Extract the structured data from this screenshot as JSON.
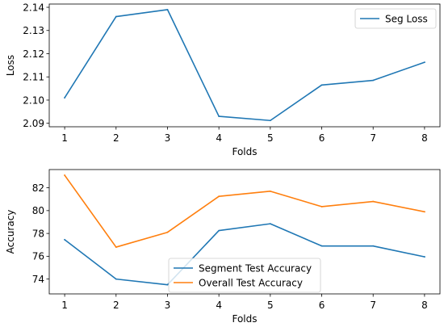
{
  "chart_data": [
    {
      "type": "line",
      "x": [
        1,
        2,
        3,
        4,
        5,
        6,
        7,
        8
      ],
      "series": [
        {
          "name": "Seg Loss",
          "color": "#1f77b4",
          "values": [
            2.101,
            2.136,
            2.139,
            2.093,
            2.0912,
            2.1065,
            2.1085,
            2.1163
          ]
        }
      ],
      "xlabel": "Folds",
      "ylabel": "Loss",
      "xlim": [
        0.7,
        8.3
      ],
      "ylim": [
        2.0885,
        2.1414
      ],
      "xticks": [
        "1",
        "2",
        "3",
        "4",
        "5",
        "6",
        "7",
        "8"
      ],
      "yticks": [
        "2.09",
        "2.10",
        "2.11",
        "2.12",
        "2.13",
        "2.14"
      ],
      "legend": "top-right",
      "grid": false
    },
    {
      "type": "line",
      "x": [
        1,
        2,
        3,
        4,
        5,
        6,
        7,
        8
      ],
      "series": [
        {
          "name": "Segment Test Accuracy",
          "color": "#1f77b4",
          "values": [
            77.45,
            74.0,
            73.5,
            78.25,
            78.85,
            76.9,
            76.9,
            75.95
          ]
        },
        {
          "name": "Overall Test Accuracy",
          "color": "#ff7f0e",
          "values": [
            83.1,
            76.8,
            78.1,
            81.25,
            81.7,
            80.35,
            80.8,
            79.9
          ]
        }
      ],
      "xlabel": "Folds",
      "ylabel": "Accuracy",
      "xlim": [
        0.7,
        8.3
      ],
      "ylim": [
        72.7,
        83.6
      ],
      "xticks": [
        "1",
        "2",
        "3",
        "4",
        "5",
        "6",
        "7",
        "8"
      ],
      "yticks": [
        "74",
        "76",
        "78",
        "80",
        "82"
      ],
      "legend": "bottom-center",
      "grid": false
    }
  ]
}
